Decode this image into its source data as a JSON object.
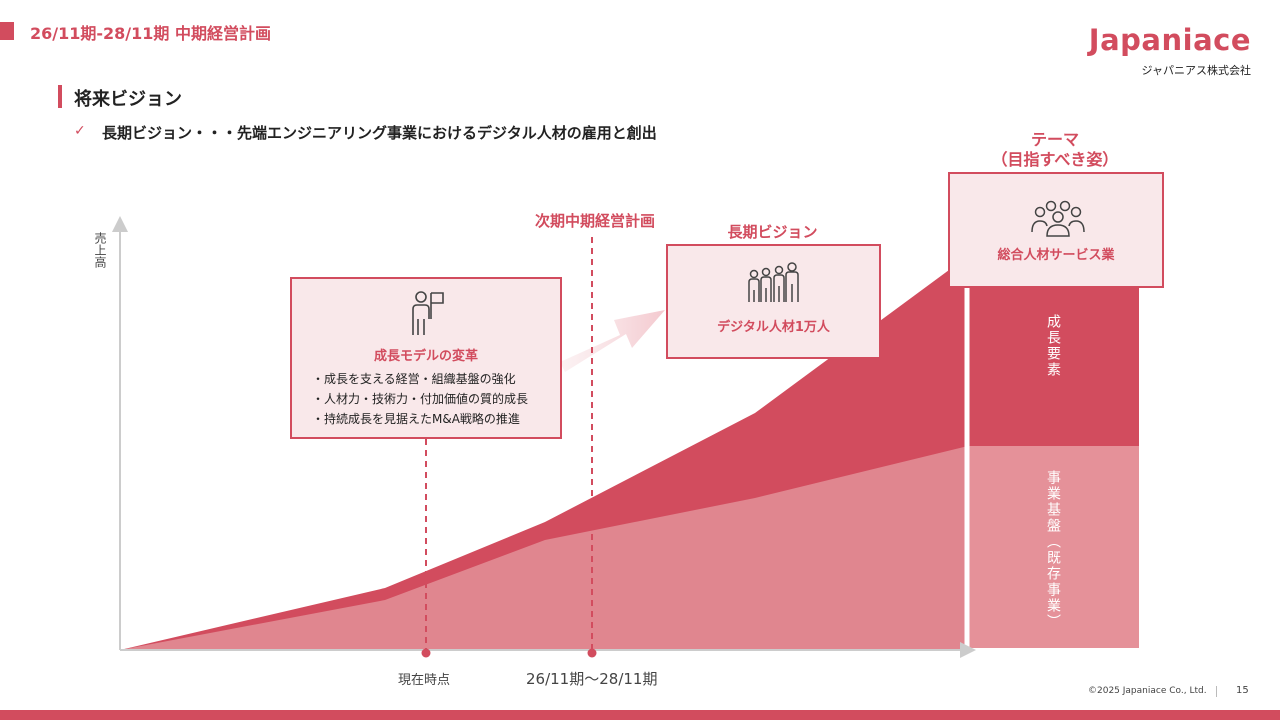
{
  "header": {
    "title": "26/11期-28/11期 中期経営計画"
  },
  "logo": {
    "name": "Japaniace",
    "company": "ジャパニアス株式会社"
  },
  "section": {
    "title": "将来ビジョン"
  },
  "vision_statement": "長期ビジョン・・・先端エンジニアリング事業におけるデジタル人材の雇用と創出",
  "labels": {
    "theme": "テーマ",
    "theme_sub": "（目指すべき姿）",
    "next_plan": "次期中期経営計画",
    "long_vision": "長期ビジョン"
  },
  "box_growth": {
    "title": "成長モデルの変革",
    "bullets": [
      "・成長を支える経営・組織基盤の強化",
      "・人材力・技術力・付加価値の質的成長",
      "・持続成長を見据えたM&A戦略の推進"
    ],
    "icon": "flag-person-icon"
  },
  "box_vision": {
    "title": "デジタル人材1万人",
    "icon": "people-group-icon"
  },
  "box_theme": {
    "title": "総合人材サービス業",
    "icon": "team-icon"
  },
  "bar_labels": {
    "upper": "成長要素",
    "lower": "事業基盤（既存事業）"
  },
  "axis": {
    "y_label": "売上高",
    "x_now": "現在時点",
    "x_period": "26/11期～28/11期"
  },
  "footer": {
    "copyright": "©2025 Japaniace Co., Ltd.",
    "page": "15"
  },
  "colors": {
    "accent": "#d24c5e",
    "light_area": "#e0868f",
    "light_box": "#f9e8ea",
    "bar_lower": "#e59199"
  }
}
